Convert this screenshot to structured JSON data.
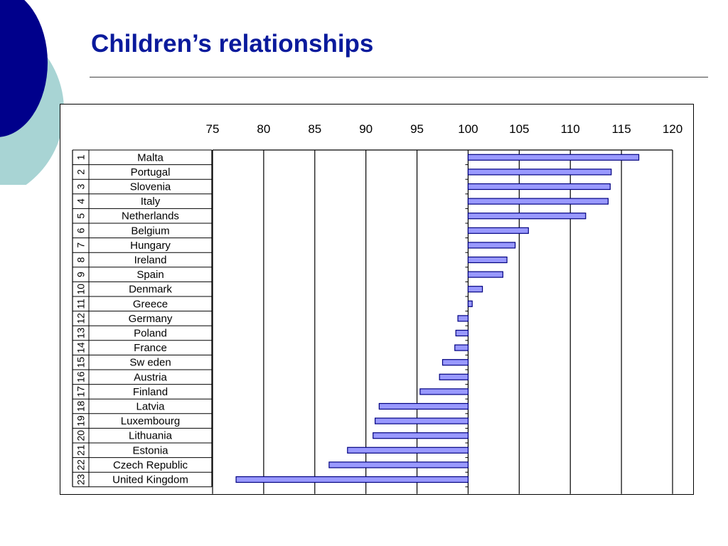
{
  "slide": {
    "title": "Children’s relationships",
    "colors": {
      "title": "#0a1a9c",
      "circle_dark": "#00008b",
      "circle_light": "#a8d4d4"
    }
  },
  "chart_data": {
    "type": "bar",
    "orientation": "horizontal",
    "title": "",
    "xlabel": "",
    "ylabel": "",
    "xlim": [
      75,
      120
    ],
    "x_ticks": [
      75,
      80,
      85,
      90,
      95,
      100,
      105,
      110,
      115,
      120
    ],
    "baseline": 100,
    "grid": true,
    "bar_color": "#9999ff",
    "ranks": [
      "1",
      "2",
      "3",
      "4",
      "5",
      "6",
      "7",
      "8",
      "9",
      "10",
      "11",
      "12",
      "13",
      "14",
      "15",
      "16",
      "17",
      "18",
      "19",
      "20",
      "21",
      "22",
      "23"
    ],
    "categories": [
      "Malta",
      "Portugal",
      "Slovenia",
      "Italy",
      "Netherlands",
      "Belgium",
      "Hungary",
      "Ireland",
      "Spain",
      "Denmark",
      "Greece",
      "Germany",
      "Poland",
      "France",
      "Sw eden",
      "Austria",
      "Finland",
      "Latvia",
      "Luxembourg",
      "Lithuania",
      "Estonia",
      "Czech Republic",
      "United Kingdom"
    ],
    "values": [
      116.7,
      114.0,
      113.9,
      113.7,
      111.5,
      105.9,
      104.6,
      103.8,
      103.4,
      101.4,
      100.4,
      99.0,
      98.8,
      98.7,
      97.5,
      97.2,
      95.3,
      91.3,
      90.9,
      90.7,
      88.2,
      86.4,
      77.3
    ]
  }
}
